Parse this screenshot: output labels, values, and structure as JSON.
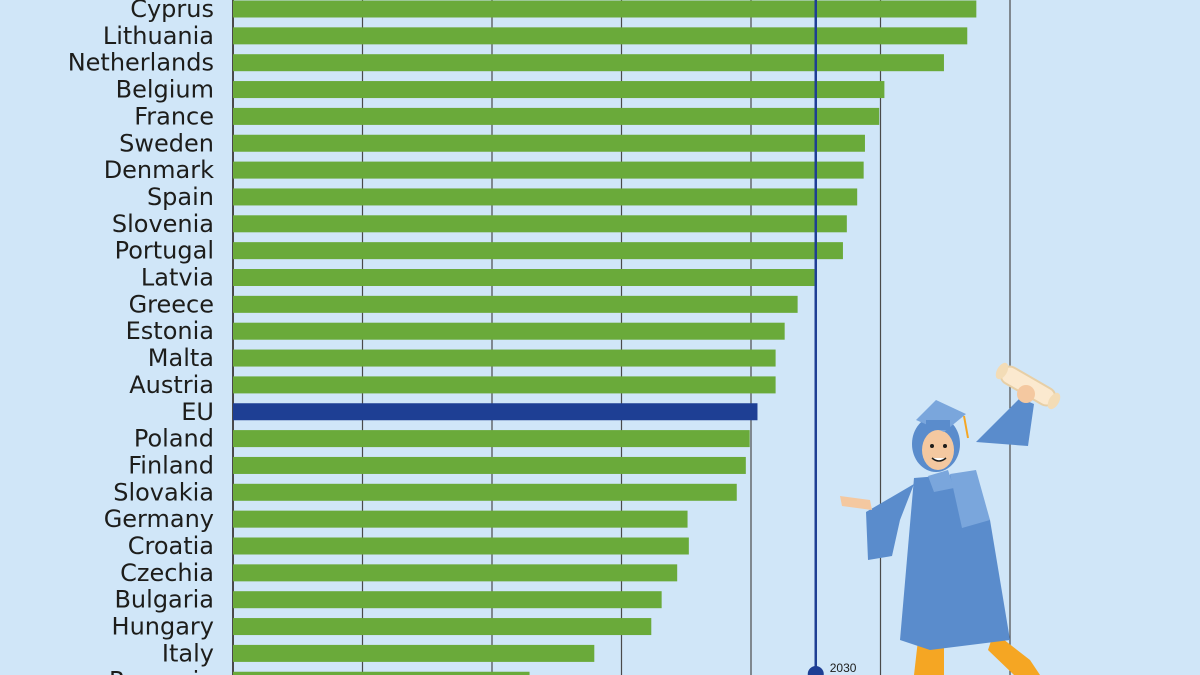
{
  "colors": {
    "background": "#d0e6f8",
    "bar": "#6aaa3a",
    "eu_bar": "#1e3f94",
    "gridline": "#4a4a4a",
    "target_line": "#1e3f94",
    "label": "#1d1d1b",
    "graduate_gown": "#5a8ccc",
    "graduate_gown_light": "#7aa6dc",
    "graduate_skin": "#f4c8a0",
    "graduate_legs": "#f5a623",
    "graduate_hair": "#5a8ccc",
    "diploma": "#fbe9cf"
  },
  "target": {
    "label": "2030",
    "value": 45
  },
  "illustration": {
    "name": "graduate-illustration"
  },
  "chart_data": {
    "type": "bar",
    "orientation": "horizontal",
    "highlight_category": "EU",
    "xlim": [
      0,
      60
    ],
    "gridlines_at": [
      0,
      10,
      20,
      30,
      40,
      50,
      60
    ],
    "grid": true,
    "categories": [
      "Cyprus",
      "Lithuania",
      "Netherlands",
      "Belgium",
      "France",
      "Sweden",
      "Denmark",
      "Spain",
      "Slovenia",
      "Portugal",
      "Latvia",
      "Greece",
      "Estonia",
      "Malta",
      "Austria",
      "EU",
      "Poland",
      "Finland",
      "Slovakia",
      "Germany",
      "Croatia",
      "Czechia",
      "Bulgaria",
      "Hungary",
      "Italy",
      "Romania"
    ],
    "values": [
      57.4,
      56.7,
      54.9,
      50.3,
      49.9,
      48.8,
      48.7,
      48.2,
      47.4,
      47.1,
      44.9,
      43.6,
      42.6,
      41.9,
      41.9,
      40.5,
      39.9,
      39.6,
      38.9,
      35.1,
      35.2,
      34.3,
      33.1,
      32.3,
      27.9,
      22.9
    ]
  }
}
